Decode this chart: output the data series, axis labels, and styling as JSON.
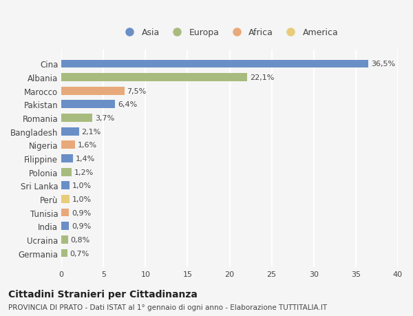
{
  "countries": [
    "Germania",
    "Ucraina",
    "India",
    "Tunisia",
    "Perù",
    "Sri Lanka",
    "Polonia",
    "Filippine",
    "Nigeria",
    "Bangladesh",
    "Romania",
    "Pakistan",
    "Marocco",
    "Albania",
    "Cina"
  ],
  "values": [
    0.7,
    0.8,
    0.9,
    0.9,
    1.0,
    1.0,
    1.2,
    1.4,
    1.6,
    2.1,
    3.7,
    6.4,
    7.5,
    22.1,
    36.5
  ],
  "labels": [
    "0,7%",
    "0,8%",
    "0,9%",
    "0,9%",
    "1,0%",
    "1,0%",
    "1,2%",
    "1,4%",
    "1,6%",
    "2,1%",
    "3,7%",
    "6,4%",
    "7,5%",
    "22,1%",
    "36,5%"
  ],
  "continents": [
    "Europa",
    "Europa",
    "Asia",
    "Africa",
    "America",
    "Asia",
    "Europa",
    "Asia",
    "Africa",
    "Asia",
    "Europa",
    "Asia",
    "Africa",
    "Europa",
    "Asia"
  ],
  "colors": {
    "Asia": "#6a8fc7",
    "Europa": "#a8bb7e",
    "Africa": "#e8a97a",
    "America": "#e8cc7a"
  },
  "legend_order": [
    "Asia",
    "Europa",
    "Africa",
    "America"
  ],
  "background_color": "#f5f5f5",
  "title": "Cittadini Stranieri per Cittadinanza",
  "subtitle": "PROVINCIA DI PRATO - Dati ISTAT al 1° gennaio di ogni anno - Elaborazione TUTTITALIA.IT",
  "xlim": [
    0,
    40
  ],
  "xticks": [
    0,
    5,
    10,
    15,
    20,
    25,
    30,
    35,
    40
  ]
}
